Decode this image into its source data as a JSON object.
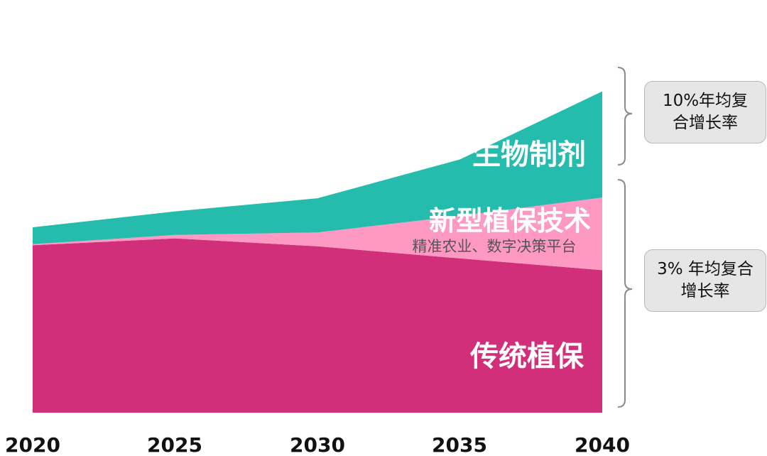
{
  "chart_data": {
    "type": "area",
    "stacked": true,
    "x": [
      2020,
      2025,
      2030,
      2035,
      2040
    ],
    "ylim": [
      0,
      100
    ],
    "series": [
      {
        "name": "传统植保",
        "color": "#d22f7a",
        "values": [
          48.4,
          50.4,
          48.1,
          44.6,
          41.2
        ]
      },
      {
        "name": "新型植保技术",
        "sublabel": "精准农业、数字决策平台",
        "color": "#fd99c2",
        "values": [
          0.3,
          1.0,
          4.0,
          12.3,
          21.0
        ]
      },
      {
        "name": "生物制剂",
        "color": "#25bcae",
        "values": [
          4.9,
          6.8,
          9.9,
          16.3,
          30.7
        ]
      }
    ],
    "annotations": [
      {
        "text": "10%年均复合增长率",
        "applies_to": [
          "生物制剂"
        ]
      },
      {
        "text": "3% 年均复合增长率",
        "applies_to": [
          "传统植保",
          "新型植保技术"
        ]
      }
    ]
  },
  "labels": {
    "traditional": "传统植保",
    "new_tech": "新型植保技术",
    "new_tech_sub": "精准农业、数字决策平台",
    "bio": "生物制剂"
  },
  "x_ticks": [
    "2020",
    "2025",
    "2030",
    "2035",
    "2040"
  ],
  "cagr": {
    "bio": "10%年均复合增长率",
    "rest": "3% 年均复合增长率"
  }
}
